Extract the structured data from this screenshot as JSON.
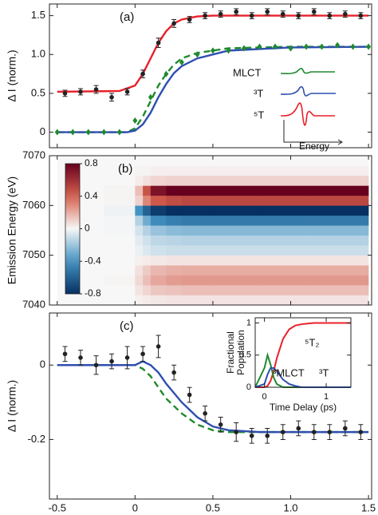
{
  "chart_data": [
    {
      "type": "line",
      "panel_label": "(a)",
      "ylabel": "Δ I (norm.)",
      "xlim": [
        -0.55,
        1.52
      ],
      "ylim": [
        -0.2,
        1.65
      ],
      "yticks": [
        0,
        0.5,
        {
          "value": 1,
          "label": "1.0"
        },
        1.5
      ],
      "series": [
        {
          "color": "#e8202a",
          "x": [
            -0.5,
            -0.1,
            0,
            0.05,
            0.1,
            0.15,
            0.2,
            0.25,
            0.3,
            0.4,
            0.5,
            0.7,
            1.0,
            1.5
          ],
          "values": [
            0.52,
            0.53,
            0.6,
            0.75,
            0.95,
            1.15,
            1.3,
            1.4,
            1.45,
            1.49,
            1.5,
            1.5,
            1.5,
            1.5
          ]
        },
        {
          "color": "#1f8a2e",
          "dash": true,
          "x": [
            -0.5,
            -0.05,
            0,
            0.05,
            0.1,
            0.15,
            0.2,
            0.25,
            0.3,
            0.4,
            0.6,
            1.0,
            1.5
          ],
          "values": [
            0,
            0,
            0.05,
            0.2,
            0.4,
            0.6,
            0.75,
            0.87,
            0.95,
            1.02,
            1.08,
            1.1,
            1.1
          ]
        },
        {
          "color": "#2f4fb0",
          "x": [
            -0.5,
            -0.05,
            0,
            0.05,
            0.1,
            0.15,
            0.2,
            0.25,
            0.3,
            0.4,
            0.6,
            1.0,
            1.5
          ],
          "values": [
            0,
            0,
            0.02,
            0.1,
            0.25,
            0.45,
            0.62,
            0.76,
            0.85,
            0.95,
            1.05,
            1.09,
            1.1
          ]
        },
        {
          "color": "#1f8a2e",
          "marker": "diamond",
          "x": [
            -0.5,
            -0.4,
            -0.3,
            -0.2,
            -0.1,
            0,
            0.1,
            0.2,
            0.3,
            0.4,
            0.5,
            0.6,
            0.7,
            0.8,
            0.9,
            1.0,
            1.1,
            1.2,
            1.3,
            1.4,
            1.5
          ],
          "values": [
            0,
            0,
            0,
            0,
            0,
            0.15,
            0.45,
            0.75,
            0.9,
            1.0,
            1.05,
            1.05,
            1.08,
            1.1,
            1.1,
            1.08,
            1.1,
            1.1,
            1.12,
            1.1,
            1.1
          ]
        },
        {
          "color": "#222222",
          "marker": "circle",
          "x": [
            -0.45,
            -0.35,
            -0.25,
            -0.15,
            -0.05,
            0.05,
            0.15,
            0.25,
            0.35,
            0.45,
            0.55,
            0.65,
            0.75,
            0.85,
            0.95,
            1.05,
            1.15,
            1.25,
            1.35,
            1.45
          ],
          "values": [
            0.5,
            0.52,
            0.55,
            0.45,
            0.52,
            0.75,
            1.15,
            1.4,
            1.45,
            1.5,
            1.52,
            1.55,
            1.5,
            1.55,
            1.52,
            1.5,
            1.55,
            1.5,
            1.52,
            1.5
          ],
          "errors": [
            0.04,
            0.04,
            0.05,
            0.05,
            0.04,
            0.05,
            0.06,
            0.05,
            0.04,
            0.04,
            0.04,
            0.04,
            0.04,
            0.04,
            0.04,
            0.04,
            0.04,
            0.04,
            0.04,
            0.04
          ]
        }
      ],
      "inset_legend": [
        {
          "label": "MLCT",
          "color": "#1f8a2e"
        },
        {
          "label": "³T",
          "color": "#2f4fb0"
        },
        {
          "label": "⁵T",
          "color": "#e8202a"
        }
      ],
      "inset_xlabel": "Energy"
    },
    {
      "type": "heatmap",
      "panel_label": "(b)",
      "ylabel": "Emission Energy (eV)",
      "xlim": [
        -0.55,
        1.52
      ],
      "ylim": [
        7040,
        7070
      ],
      "yticks": [
        7040,
        7050,
        7060,
        7070
      ],
      "x_edges": [
        -0.5,
        -0.2,
        0,
        0.05,
        0.1,
        0.2,
        0.3,
        0.5,
        0.8,
        1.1,
        1.5
      ],
      "y_edges": [
        7040,
        7042,
        7044,
        7046,
        7048,
        7050,
        7052,
        7054,
        7056,
        7058,
        7060,
        7062,
        7064,
        7066,
        7068,
        7070
      ],
      "z": [
        [
          0,
          0,
          0.02,
          0.03,
          0.04,
          0.05,
          0.05,
          0.05,
          0.05,
          0.05
        ],
        [
          0,
          0,
          0.05,
          0.09,
          0.13,
          0.14,
          0.15,
          0.15,
          0.15,
          0.15
        ],
        [
          0,
          0.01,
          0.08,
          0.15,
          0.21,
          0.24,
          0.25,
          0.25,
          0.25,
          0.25
        ],
        [
          0,
          0,
          0.06,
          0.12,
          0.17,
          0.19,
          0.2,
          0.2,
          0.2,
          0.2
        ],
        [
          0,
          0,
          0.02,
          0.03,
          0.04,
          0.05,
          0.05,
          0.05,
          0.05,
          0.05
        ],
        [
          0,
          0,
          -0.03,
          -0.06,
          -0.09,
          -0.1,
          -0.1,
          -0.1,
          -0.1,
          -0.1
        ],
        [
          0,
          0,
          -0.05,
          -0.09,
          -0.13,
          -0.14,
          -0.15,
          -0.15,
          -0.15,
          -0.15
        ],
        [
          0,
          -0.01,
          -0.08,
          -0.15,
          -0.21,
          -0.24,
          -0.25,
          -0.25,
          -0.25,
          -0.25
        ],
        [
          0,
          -0.01,
          -0.15,
          -0.3,
          -0.43,
          -0.48,
          -0.5,
          -0.5,
          -0.5,
          -0.5
        ],
        [
          0,
          -0.02,
          -0.4,
          -0.6,
          -0.75,
          -0.82,
          -0.85,
          -0.85,
          -0.85,
          -0.85
        ],
        [
          0,
          0.01,
          0.1,
          0.3,
          0.43,
          0.48,
          0.5,
          0.5,
          0.5,
          0.5
        ],
        [
          0,
          0.01,
          0.15,
          0.45,
          0.72,
          0.81,
          0.85,
          0.85,
          0.85,
          0.85
        ],
        [
          0,
          0,
          0.03,
          0.06,
          0.09,
          0.1,
          0.1,
          0.1,
          0.1,
          0.1
        ],
        [
          0,
          0,
          0.01,
          0.01,
          0.02,
          0.02,
          0.02,
          0.02,
          0.02,
          0.02
        ],
        [
          0,
          0,
          0,
          0,
          0,
          0,
          0,
          0,
          0,
          0
        ]
      ],
      "zlim": [
        -0.8,
        0.8
      ],
      "zticks": [
        0.8,
        0.4,
        0,
        -0.4,
        -0.8
      ]
    },
    {
      "type": "line",
      "panel_label": "(c)",
      "ylabel": "Δ I (norm.)",
      "xlabel": "Time Delay  (ps)",
      "xlim": [
        -0.55,
        1.52
      ],
      "ylim": [
        -0.36,
        0.14
      ],
      "xticks": [
        -0.5,
        0,
        0.5,
        {
          "value": 1,
          "label": "1.0"
        },
        1.5
      ],
      "yticks": [
        0,
        -0.2
      ],
      "series": [
        {
          "color": "#1f8a2e",
          "dash": true,
          "x": [
            -0.5,
            0,
            0.05,
            0.1,
            0.15,
            0.2,
            0.3,
            0.4,
            0.5,
            0.6,
            0.8,
            1.0,
            1.5
          ],
          "values": [
            0,
            0,
            -0.01,
            -0.03,
            -0.06,
            -0.09,
            -0.13,
            -0.16,
            -0.175,
            -0.18,
            -0.18,
            -0.18,
            -0.18
          ]
        },
        {
          "color": "#2f4fb0",
          "x": [
            -0.5,
            0,
            0.05,
            0.1,
            0.15,
            0.2,
            0.3,
            0.4,
            0.5,
            0.6,
            0.8,
            1.0,
            1.5
          ],
          "values": [
            0,
            0,
            0.01,
            0,
            -0.02,
            -0.05,
            -0.1,
            -0.14,
            -0.165,
            -0.175,
            -0.18,
            -0.18,
            -0.18
          ]
        },
        {
          "color": "#222222",
          "marker": "circle",
          "x": [
            -0.45,
            -0.35,
            -0.25,
            -0.15,
            -0.05,
            0.05,
            0.15,
            0.25,
            0.35,
            0.45,
            0.55,
            0.65,
            0.75,
            0.85,
            0.95,
            1.05,
            1.15,
            1.25,
            1.35,
            1.45
          ],
          "values": [
            0.03,
            0.02,
            0,
            0.01,
            0.02,
            0.03,
            0.05,
            -0.02,
            -0.08,
            -0.13,
            -0.16,
            -0.18,
            -0.19,
            -0.19,
            -0.18,
            -0.17,
            -0.18,
            -0.18,
            -0.17,
            -0.18
          ],
          "errors": [
            0.02,
            0.02,
            0.025,
            0.02,
            0.03,
            0.02,
            0.03,
            0.02,
            0.02,
            0.02,
            0.02,
            0.025,
            0.02,
            0.02,
            0.02,
            0.02,
            0.02,
            0.02,
            0.02,
            0.02
          ]
        }
      ]
    },
    {
      "type": "line",
      "ylabel": [
        "Fractional",
        "Population"
      ],
      "xlabel": "Time Delay  (ps)",
      "xlim": [
        -0.15,
        1.4
      ],
      "ylim": [
        0,
        1.08
      ],
      "xticks": [
        0,
        1
      ],
      "yticks": [
        0,
        0.5,
        1
      ],
      "series": [
        {
          "color": "#e8202a",
          "x": [
            -0.15,
            0,
            0.05,
            0.1,
            0.15,
            0.2,
            0.3,
            0.4,
            0.5,
            0.6,
            0.8,
            1.0,
            1.4
          ],
          "values": [
            0,
            0,
            0.02,
            0.1,
            0.25,
            0.45,
            0.75,
            0.9,
            0.96,
            0.98,
            1,
            1,
            1
          ]
        },
        {
          "color": "#1f8a2e",
          "x": [
            -0.15,
            0,
            0.05,
            0.1,
            0.15,
            0.2,
            0.3,
            0.4,
            0.5,
            0.6,
            0.8,
            1.0,
            1.4
          ],
          "values": [
            0,
            0.3,
            0.5,
            0.35,
            0.15,
            0.05,
            0,
            0,
            0,
            0,
            0,
            0,
            0
          ]
        },
        {
          "color": "#2f4fb0",
          "x": [
            -0.15,
            0,
            0.05,
            0.1,
            0.15,
            0.2,
            0.3,
            0.4,
            0.5,
            0.6,
            0.8,
            1.0,
            1.4
          ],
          "values": [
            0,
            0.05,
            0.2,
            0.3,
            0.3,
            0.25,
            0.12,
            0.05,
            0.02,
            0,
            0,
            0,
            0
          ]
        }
      ],
      "annotations": [
        {
          "text": "⁵T₂",
          "color": "#e8202a"
        },
        {
          "text": "³MLCT",
          "color": "#2f4fb0"
        },
        {
          "text": "³T",
          "color": "#1f8a2e"
        }
      ]
    }
  ]
}
